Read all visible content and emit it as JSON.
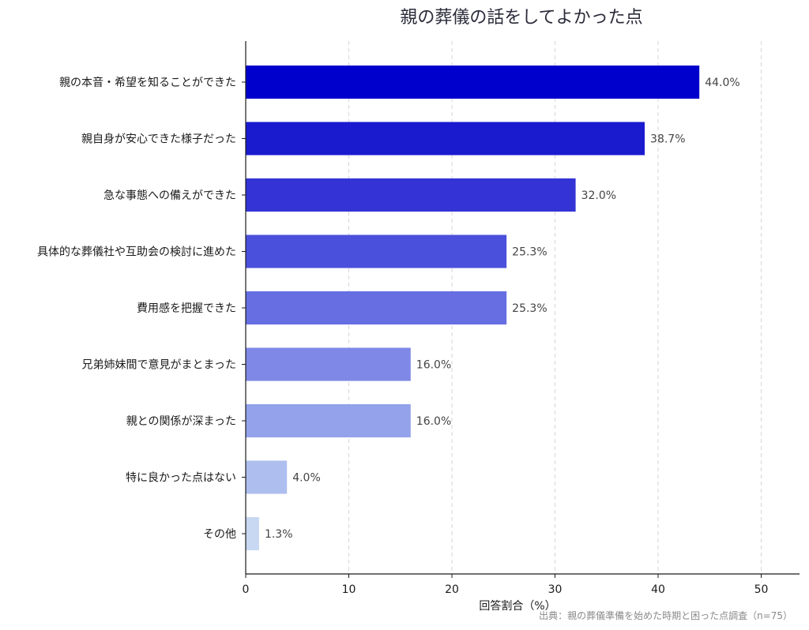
{
  "chart_data": {
    "type": "bar",
    "orientation": "horizontal",
    "title": "親の葬儀の話をしてよかった点",
    "xlabel": "回答割合（%）",
    "ylabel": "",
    "source": "出典：親の葬儀準備を始めた時期と困った点調査（n=75）",
    "xlim": [
      0,
      53
    ],
    "xticks": [
      0,
      10,
      20,
      30,
      40,
      50
    ],
    "grid": "x-dashed",
    "categories": [
      "親の本音・希望を知ることができた",
      "親自身が安心できた様子だった",
      "急な事態への備えができた",
      "具体的な葬儀社や互助会の検討に進めた",
      "費用感を把握できた",
      "兄弟姉妹間で意見がまとまった",
      "親との関係が深まった",
      "特に良かった点はない",
      "その他"
    ],
    "values": [
      44.0,
      38.7,
      32.0,
      25.3,
      25.3,
      16.0,
      16.0,
      4.0,
      1.3
    ],
    "value_labels": [
      "44.0%",
      "38.7%",
      "32.0%",
      "25.3%",
      "25.3%",
      "16.0%",
      "16.0%",
      "4.0%",
      "1.3%"
    ],
    "colors": [
      "#0000cc",
      "#1a1acf",
      "#3333d6",
      "#4b50dc",
      "#666ee2",
      "#7f88e6",
      "#93a2ea",
      "#aebeef",
      "#c8d8f2"
    ]
  }
}
